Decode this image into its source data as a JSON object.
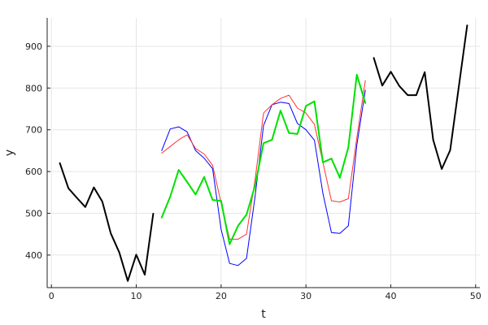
{
  "chart_data": {
    "type": "line",
    "title": "",
    "xlabel": "t",
    "ylabel": "y",
    "xlim": [
      -0.5,
      50.5
    ],
    "ylim": [
      322,
      968
    ],
    "x_ticks": [
      0,
      10,
      20,
      30,
      40,
      50
    ],
    "y_ticks": [
      400,
      500,
      600,
      700,
      800,
      900
    ],
    "x_tick_labels": [
      "0",
      "10",
      "20",
      "30",
      "40",
      "50"
    ],
    "y_tick_labels": [
      "400",
      "500",
      "600",
      "700",
      "800",
      "900"
    ],
    "grid": true,
    "legend": "none",
    "series": [
      {
        "color": "#000000",
        "width": 2,
        "x": [
          1,
          2,
          3,
          4,
          5,
          6,
          7,
          8,
          9,
          10,
          11,
          12
        ],
        "y": [
          620,
          560,
          537,
          515,
          562,
          528,
          452,
          406,
          338,
          401,
          353,
          499
        ]
      },
      {
        "color": "#000000",
        "width": 2,
        "x": [
          38,
          39,
          40,
          41,
          42,
          43,
          44,
          45,
          46,
          47,
          48,
          49
        ],
        "y": [
          872,
          806,
          839,
          805,
          783,
          783,
          838,
          676,
          606,
          651,
          800,
          950
        ]
      },
      {
        "color": "#0000ff",
        "width": 1,
        "x": [
          13,
          14,
          15,
          16,
          17,
          18,
          19,
          20,
          21,
          22,
          23,
          24,
          25,
          26,
          27,
          28,
          29,
          30,
          31,
          32,
          33,
          34,
          35,
          36,
          37
        ],
        "y": [
          650,
          702,
          707,
          695,
          650,
          632,
          607,
          462,
          380,
          375,
          392,
          540,
          710,
          760,
          766,
          763,
          715,
          700,
          675,
          548,
          454,
          452,
          470,
          663,
          795
        ]
      },
      {
        "color": "#ff3333",
        "width": 1,
        "x": [
          13,
          14,
          15,
          16,
          17,
          18,
          19,
          20,
          21,
          22,
          23,
          24,
          25,
          26,
          27,
          28,
          29,
          30,
          31,
          32,
          33,
          34,
          35,
          36,
          37
        ],
        "y": [
          644,
          660,
          676,
          688,
          655,
          642,
          615,
          525,
          438,
          438,
          450,
          580,
          740,
          760,
          775,
          783,
          752,
          740,
          713,
          622,
          530,
          527,
          535,
          680,
          818
        ]
      },
      {
        "color": "#00e000",
        "width": 2,
        "x": [
          13,
          14,
          15,
          16,
          17,
          18,
          19,
          20,
          21,
          22,
          23,
          24,
          25,
          26,
          27,
          28,
          29,
          30,
          31,
          32,
          33,
          34,
          35,
          36,
          37
        ],
        "y": [
          490,
          540,
          604,
          575,
          545,
          587,
          532,
          530,
          426,
          470,
          497,
          566,
          668,
          676,
          746,
          692,
          690,
          757,
          768,
          622,
          631,
          585,
          658,
          832,
          764
        ]
      }
    ]
  }
}
